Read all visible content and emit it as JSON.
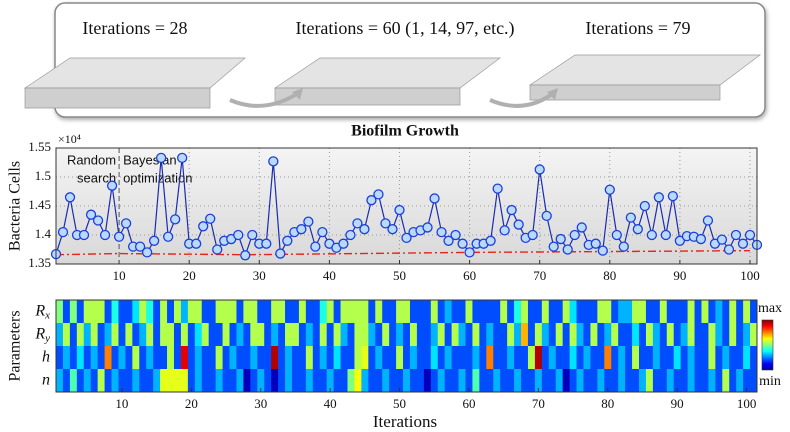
{
  "panel": {
    "labels": [
      "Iterations = 28",
      "Iterations = 60 (1, 14, 97, etc.)",
      "Iterations = 79"
    ]
  },
  "chart_data": [
    {
      "type": "line",
      "title": "Biofilm Growth",
      "multiplier": "×10⁴",
      "ylabel": "Bacteria Cells",
      "xlim": [
        1,
        101
      ],
      "xticks": [
        10,
        20,
        30,
        40,
        50,
        60,
        70,
        80,
        90,
        100
      ],
      "ylim": [
        1.35,
        1.55
      ],
      "yticks": [
        1.35,
        1.4,
        1.45,
        1.5,
        1.55
      ],
      "grid": true,
      "annotations": [
        {
          "lines": [
            "Random",
            "search"
          ],
          "color": "#e0541c"
        },
        {
          "lines": [
            "Bayesian",
            "optimization"
          ],
          "color": "#8b1010"
        }
      ],
      "divider": 10,
      "series": [
        {
          "color": "#1a2db0",
          "x": [
            1,
            2,
            3,
            4,
            5,
            6,
            7,
            8,
            9,
            10,
            11,
            12,
            13,
            14,
            15,
            16,
            17,
            18,
            19,
            20,
            21,
            22,
            23,
            24,
            25,
            26,
            27,
            28,
            29,
            30,
            31,
            32,
            33,
            34,
            35,
            36,
            37,
            38,
            39,
            40,
            41,
            42,
            43,
            44,
            45,
            46,
            47,
            48,
            49,
            50,
            51,
            52,
            53,
            54,
            55,
            56,
            57,
            58,
            59,
            60,
            61,
            62,
            63,
            64,
            65,
            66,
            67,
            68,
            69,
            70,
            71,
            72,
            73,
            74,
            75,
            76,
            77,
            78,
            79,
            80,
            81,
            82,
            83,
            84,
            85,
            86,
            87,
            88,
            89,
            90,
            91,
            92,
            93,
            94,
            95,
            96,
            97,
            98,
            99,
            100,
            101
          ],
          "values": [
            1.367,
            1.405,
            1.465,
            1.4,
            1.4,
            1.435,
            1.425,
            1.4,
            1.485,
            1.397,
            1.42,
            1.38,
            1.38,
            1.37,
            1.39,
            1.533,
            1.397,
            1.427,
            1.533,
            1.385,
            1.385,
            1.415,
            1.428,
            1.375,
            1.39,
            1.393,
            1.4,
            1.365,
            1.4,
            1.385,
            1.385,
            1.527,
            1.368,
            1.39,
            1.405,
            1.41,
            1.423,
            1.38,
            1.405,
            1.385,
            1.378,
            1.385,
            1.4,
            1.42,
            1.41,
            1.46,
            1.47,
            1.42,
            1.41,
            1.443,
            1.395,
            1.405,
            1.408,
            1.413,
            1.463,
            1.405,
            1.39,
            1.4,
            1.385,
            1.37,
            1.385,
            1.385,
            1.39,
            1.48,
            1.408,
            1.443,
            1.418,
            1.395,
            1.4,
            1.513,
            1.433,
            1.38,
            1.393,
            1.375,
            1.4,
            1.413,
            1.383,
            1.385,
            1.373,
            1.478,
            1.4,
            1.38,
            1.43,
            1.41,
            1.45,
            1.4,
            1.465,
            1.4,
            1.467,
            1.39,
            1.398,
            1.397,
            1.393,
            1.425,
            1.385,
            1.392,
            1.375,
            1.4,
            1.385,
            1.4,
            1.383
          ]
        },
        {
          "color": "#e8231c",
          "x": [
            1,
            10,
            28,
            60,
            100
          ],
          "values": [
            1.366,
            1.368,
            1.366,
            1.37,
            1.373
          ]
        }
      ]
    },
    {
      "type": "heatmap",
      "ylabel": "Parameters",
      "xlabel": "Iterations",
      "xlim": [
        0.5,
        101.5
      ],
      "xticks": [
        10,
        20,
        30,
        40,
        50,
        60,
        70,
        80,
        90,
        100
      ],
      "rows": [
        {
          "base": "R",
          "sub": "x"
        },
        {
          "base": "R",
          "sub": "y"
        },
        {
          "base": "h"
        },
        {
          "base": "n"
        }
      ],
      "colorbar": [
        "max",
        "min"
      ],
      "values": [
        [
          0.5,
          0.2,
          0.5,
          0.2,
          0.55,
          0.55,
          0.55,
          0.2,
          0.4,
          0.2,
          0.2,
          0.35,
          0.55,
          0.4,
          0.2,
          0.55,
          0.2,
          0.55,
          0.3,
          0.55,
          0.55,
          0.2,
          0.2,
          0.55,
          0.55,
          0.55,
          0.2,
          0.55,
          0.55,
          0.2,
          0.2,
          0.55,
          0.55,
          0.2,
          0.2,
          0.55,
          0.2,
          0.2,
          0.4,
          0.55,
          0.2,
          0.55,
          0.55,
          0.55,
          0.55,
          0.2,
          0.55,
          0.2,
          0.2,
          0.55,
          0.55,
          0.2,
          0.2,
          0.2,
          0.55,
          0.2,
          0.3,
          0.2,
          0.2,
          0.55,
          0.2,
          0.2,
          0.2,
          0.2,
          0.55,
          0.2,
          0.4,
          0.55,
          0.2,
          0.2,
          0.55,
          0.2,
          0.2,
          0.55,
          0.35,
          0.2,
          0.2,
          0.2,
          0.55,
          0.55,
          0.2,
          0.3,
          0.3,
          0.55,
          0.55,
          0.2,
          0.2,
          0.55,
          0.2,
          0.2,
          0.2,
          0.55,
          0.2,
          0.55,
          0.2,
          0.3,
          0.2,
          0.55,
          0.2,
          0.55,
          0.2
        ],
        [
          0.3,
          0.55,
          0.2,
          0.55,
          0.3,
          0.55,
          0.2,
          0.3,
          0.55,
          0.2,
          0.55,
          0.2,
          0.3,
          0.55,
          0.2,
          0.55,
          0.55,
          0.2,
          0.55,
          0.2,
          0.35,
          0.55,
          0.2,
          0.2,
          0.55,
          0.2,
          0.3,
          0.2,
          0.55,
          0.55,
          0.2,
          0.3,
          0.2,
          0.55,
          0.55,
          0.2,
          0.3,
          0.2,
          0.55,
          0.2,
          0.55,
          0.3,
          0.2,
          0.55,
          0.55,
          0.3,
          0.2,
          0.55,
          0.2,
          0.3,
          0.2,
          0.55,
          0.2,
          0.2,
          0.3,
          0.55,
          0.2,
          0.55,
          0.3,
          0.2,
          0.55,
          0.2,
          0.3,
          0.2,
          0.2,
          0.55,
          0.3,
          0.7,
          0.2,
          0.55,
          0.3,
          0.2,
          0.55,
          0.2,
          0.55,
          0.3,
          0.2,
          0.55,
          0.2,
          0.3,
          0.55,
          0.2,
          0.2,
          0.35,
          0.2,
          0.55,
          0.3,
          0.2,
          0.55,
          0.2,
          0.3,
          0.55,
          0.2,
          0.2,
          0.55,
          0.3,
          0.2,
          0.55,
          0.2,
          0.3,
          0.55
        ],
        [
          0.2,
          0.3,
          0.2,
          0.35,
          0.2,
          0.3,
          0.2,
          0.75,
          0.2,
          0.3,
          0.2,
          0.55,
          0.2,
          0.3,
          0.2,
          0.2,
          0.55,
          0.2,
          0.9,
          0.2,
          0.3,
          0.2,
          0.2,
          0.55,
          0.2,
          0.3,
          0.2,
          0.2,
          0.3,
          0.2,
          0.2,
          0.95,
          0.2,
          0.3,
          0.2,
          0.2,
          0.55,
          0.2,
          0.3,
          0.2,
          0.35,
          0.2,
          0.2,
          0.55,
          0.6,
          0.2,
          0.3,
          0.2,
          0.2,
          0.55,
          0.2,
          0.3,
          0.2,
          0.2,
          0.35,
          0.2,
          0.3,
          0.2,
          0.2,
          0.2,
          0.3,
          0.2,
          0.75,
          0.2,
          0.2,
          0.3,
          0.2,
          0.2,
          0.55,
          0.95,
          0.2,
          0.3,
          0.2,
          0.2,
          0.35,
          0.2,
          0.3,
          0.2,
          0.2,
          0.75,
          0.2,
          0.3,
          0.2,
          0.55,
          0.2,
          0.2,
          0.3,
          0.2,
          0.2,
          0.35,
          0.2,
          0.3,
          0.2,
          0.2,
          0.55,
          0.2,
          0.3,
          0.2,
          0.2,
          0.35,
          0.2
        ],
        [
          0.3,
          0.2,
          0.45,
          0.2,
          0.3,
          0.2,
          0.55,
          0.2,
          0.3,
          0.2,
          0.2,
          0.3,
          0.2,
          0.2,
          0.3,
          0.6,
          0.6,
          0.6,
          0.6,
          0.2,
          0.3,
          0.2,
          0.2,
          0.3,
          0.2,
          0.2,
          0.3,
          0.05,
          0.2,
          0.3,
          0.2,
          0.05,
          0.2,
          0.3,
          0.2,
          0.2,
          0.3,
          0.2,
          0.2,
          0.3,
          0.2,
          0.2,
          0.5,
          0.62,
          0.3,
          0.2,
          0.2,
          0.3,
          0.2,
          0.2,
          0.3,
          0.2,
          0.2,
          0.05,
          0.2,
          0.3,
          0.2,
          0.2,
          0.3,
          0.2,
          0.45,
          0.2,
          0.2,
          0.3,
          0.2,
          0.2,
          0.3,
          0.2,
          0.2,
          0.3,
          0.2,
          0.2,
          0.3,
          0.05,
          0.2,
          0.3,
          0.2,
          0.2,
          0.3,
          0.2,
          0.2,
          0.3,
          0.2,
          0.2,
          0.3,
          0.55,
          0.2,
          0.2,
          0.3,
          0.2,
          0.2,
          0.3,
          0.2,
          0.2,
          0.3,
          0.2,
          0.55,
          0.2,
          0.3,
          0.2,
          0.2
        ]
      ]
    }
  ]
}
